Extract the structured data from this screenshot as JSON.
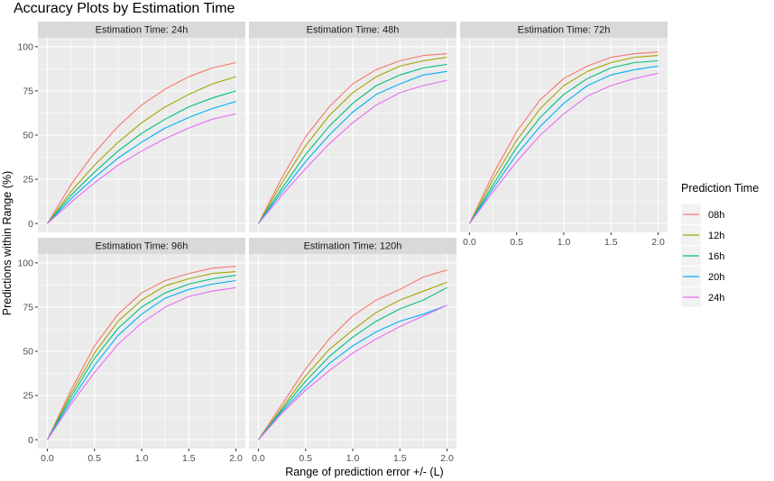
{
  "chart_data": {
    "type": "line",
    "title": "Accuracy Plots by Estimation Time",
    "xlabel": "Range of prediction error +/- (L)",
    "ylabel": "Predictions within Range (%)",
    "xlim": [
      0,
      2
    ],
    "ylim": [
      0,
      100
    ],
    "x_ticks": [
      0.0,
      0.5,
      1.0,
      1.5,
      2.0
    ],
    "x_tick_labels": [
      "0.0",
      "0.5",
      "1.0",
      "1.5",
      "2.0"
    ],
    "y_ticks": [
      0,
      25,
      50,
      75,
      100
    ],
    "y_tick_labels": [
      "0",
      "25",
      "50",
      "75",
      "100"
    ],
    "x": [
      0,
      0.25,
      0.5,
      0.75,
      1.0,
      1.25,
      1.5,
      1.75,
      2.0
    ],
    "legend": {
      "title": "Prediction Time",
      "entries": [
        "08h",
        "12h",
        "16h",
        "20h",
        "24h"
      ],
      "colors": [
        "#F8766D",
        "#A3A500",
        "#00BF7D",
        "#00B0F6",
        "#E76BF3"
      ]
    },
    "panels": [
      {
        "strip": "Estimation Time: 24h",
        "series": [
          {
            "name": "08h",
            "values": [
              0,
              22,
              40,
              55,
              67,
              76,
              83,
              88,
              91
            ]
          },
          {
            "name": "12h",
            "values": [
              0,
              18,
              33,
              46,
              57,
              66,
              73,
              79,
              83
            ]
          },
          {
            "name": "16h",
            "values": [
              0,
              16,
              29,
              41,
              51,
              59,
              66,
              71,
              75
            ]
          },
          {
            "name": "20h",
            "values": [
              0,
              14,
              26,
              37,
              46,
              54,
              60,
              65,
              69
            ]
          },
          {
            "name": "24h",
            "values": [
              0,
              12,
              23,
              33,
              41,
              48,
              54,
              59,
              62
            ]
          }
        ]
      },
      {
        "strip": "Estimation Time: 48h",
        "series": [
          {
            "name": "08h",
            "values": [
              0,
              26,
              49,
              66,
              79,
              87,
              92,
              95,
              96
            ]
          },
          {
            "name": "12h",
            "values": [
              0,
              23,
              44,
              61,
              74,
              83,
              89,
              92,
              94
            ]
          },
          {
            "name": "16h",
            "values": [
              0,
              20,
              39,
              55,
              68,
              78,
              84,
              88,
              90
            ]
          },
          {
            "name": "20h",
            "values": [
              0,
              18,
              35,
              50,
              63,
              73,
              79,
              84,
              86
            ]
          },
          {
            "name": "24h",
            "values": [
              0,
              16,
              31,
              45,
              57,
              67,
              74,
              78,
              81
            ]
          }
        ]
      },
      {
        "strip": "Estimation Time: 72h",
        "series": [
          {
            "name": "08h",
            "values": [
              0,
              28,
              52,
              70,
              82,
              89,
              94,
              96,
              97
            ]
          },
          {
            "name": "12h",
            "values": [
              0,
              25,
              47,
              65,
              78,
              86,
              91,
              94,
              95
            ]
          },
          {
            "name": "16h",
            "values": [
              0,
              22,
              43,
              60,
              73,
              82,
              88,
              91,
              92
            ]
          },
          {
            "name": "20h",
            "values": [
              0,
              20,
              39,
              55,
              68,
              78,
              84,
              87,
              89
            ]
          },
          {
            "name": "24h",
            "values": [
              0,
              18,
              35,
              50,
              62,
              72,
              78,
              82,
              85
            ]
          }
        ]
      },
      {
        "strip": "Estimation Time: 96h",
        "series": [
          {
            "name": "08h",
            "values": [
              0,
              28,
              53,
              71,
              83,
              90,
              94,
              97,
              98
            ]
          },
          {
            "name": "12h",
            "values": [
              0,
              26,
              49,
              67,
              79,
              87,
              91,
              94,
              95
            ]
          },
          {
            "name": "16h",
            "values": [
              0,
              24,
              46,
              63,
              75,
              83,
              88,
              91,
              93
            ]
          },
          {
            "name": "20h",
            "values": [
              0,
              22,
              42,
              59,
              71,
              80,
              85,
              88,
              90
            ]
          },
          {
            "name": "24h",
            "values": [
              0,
              20,
              38,
              54,
              66,
              75,
              81,
              84,
              86
            ]
          }
        ]
      },
      {
        "strip": "Estimation Time: 120h",
        "series": [
          {
            "name": "08h",
            "values": [
              0,
              20,
              40,
              57,
              70,
              79,
              85,
              92,
              96
            ]
          },
          {
            "name": "12h",
            "values": [
              0,
              18,
              36,
              51,
              62,
              72,
              79,
              84,
              89
            ]
          },
          {
            "name": "16h",
            "values": [
              0,
              17,
              33,
              47,
              58,
              67,
              74,
              79,
              86
            ]
          },
          {
            "name": "20h",
            "values": [
              0,
              16,
              30,
              43,
              53,
              61,
              67,
              71,
              76
            ]
          },
          {
            "name": "24h",
            "values": [
              0,
              15,
              28,
              39,
              49,
              57,
              64,
              70,
              76
            ]
          }
        ]
      }
    ]
  }
}
